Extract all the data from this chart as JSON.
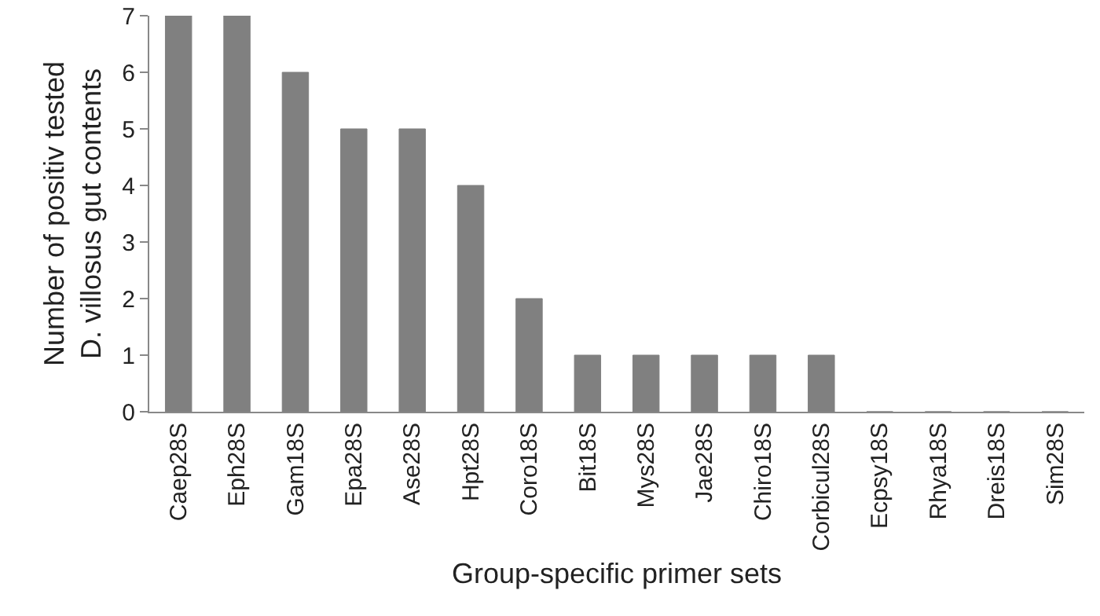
{
  "chart_data": {
    "type": "bar",
    "xlabel": "Group-specific primer sets",
    "ylabel": "Number of positiv tested\nD. villosus gut contents",
    "categories": [
      "Caep28S",
      "Eph28S",
      "Gam18S",
      "Epa28S",
      "Ase28S",
      "Hpt28S",
      "Coro18S",
      "Bit18S",
      "Mys28S",
      "Jae28S",
      "Chiro18S",
      "Corbicul28S",
      "Ecpsy18S",
      "Rhya18S",
      "Dreis18S",
      "Sim28S"
    ],
    "values": [
      7,
      7,
      6,
      5,
      5,
      4,
      2,
      1,
      1,
      1,
      1,
      1,
      0,
      0,
      0,
      0
    ],
    "color": "#808080",
    "ylim": [
      0,
      7
    ],
    "yticks": [
      0,
      1,
      2,
      3,
      4,
      5,
      6,
      7
    ],
    "grid": false
  }
}
